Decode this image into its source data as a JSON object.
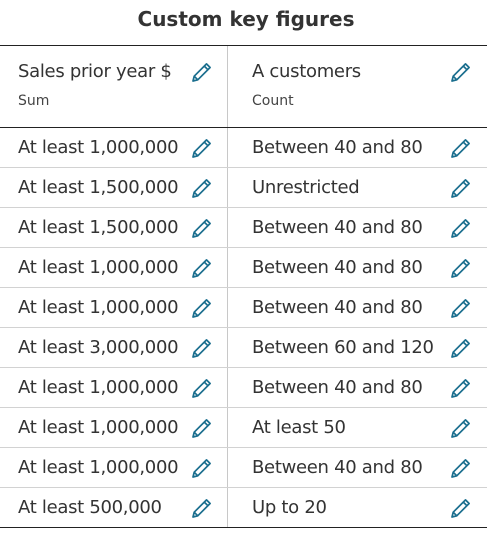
{
  "title": "Custom key figures",
  "accent_color": "#1a6e8e",
  "edit_icon": "pencil-icon",
  "columns": [
    {
      "label": "Sales prior year $",
      "sublabel": "Sum"
    },
    {
      "label": "A customers",
      "sublabel": "Count"
    }
  ],
  "rows": [
    {
      "sales": "At least 1,000,000",
      "customers": "Between 40 and 80"
    },
    {
      "sales": "At least 1,500,000",
      "customers": "Unrestricted"
    },
    {
      "sales": "At least 1,500,000",
      "customers": "Between 40 and 80"
    },
    {
      "sales": "At least 1,000,000",
      "customers": "Between 40 and 80"
    },
    {
      "sales": "At least 1,000,000",
      "customers": "Between 40 and 80"
    },
    {
      "sales": "At least 3,000,000",
      "customers": "Between 60 and 120"
    },
    {
      "sales": "At least 1,000,000",
      "customers": "Between 40 and 80"
    },
    {
      "sales": "At least 1,000,000",
      "customers": "At least 50"
    },
    {
      "sales": "At least 1,000,000",
      "customers": "Between 40 and 80"
    },
    {
      "sales": "At least 500,000",
      "customers": "Up to 20"
    }
  ]
}
